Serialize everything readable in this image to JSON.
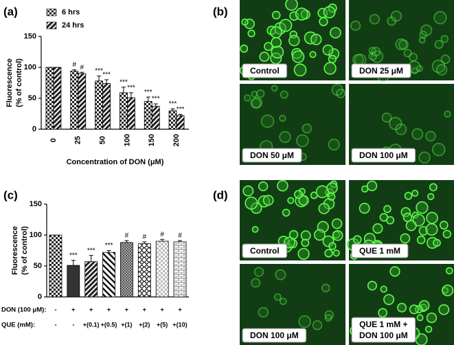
{
  "chart_data": [
    {
      "type": "grouped-bar",
      "panel_label": "(a)",
      "ylabel": [
        "Fluorescence",
        "(% of control)"
      ],
      "xlabel": "Concentration of DON (μM)",
      "categories": [
        "0",
        "25",
        "50",
        "100",
        "150",
        "200"
      ],
      "series": [
        {
          "name": "6 hrs",
          "pattern": "checker",
          "values": [
            100,
            94,
            78,
            59,
            45,
            30
          ],
          "errors": [
            0,
            2,
            8,
            9,
            7,
            3
          ],
          "markers": [
            null,
            "#",
            "***",
            "***",
            "***",
            "***"
          ]
        },
        {
          "name": "24 hrs",
          "pattern": "stripes",
          "values": [
            100,
            90,
            74,
            51,
            37,
            22
          ],
          "errors": [
            0,
            2,
            6,
            8,
            4,
            2
          ],
          "markers": [
            null,
            "#",
            "***",
            "***",
            "***",
            "***"
          ]
        }
      ],
      "ylim": [
        0,
        150
      ],
      "yticks": [
        0,
        50,
        100,
        150
      ]
    },
    {
      "type": "bar",
      "panel_label": "(c)",
      "ylabel": [
        "Fluorescence",
        "(% of control)"
      ],
      "rows": [
        {
          "label": "DON (100 μM):",
          "values": [
            "-",
            "+",
            "+",
            "+",
            "+",
            "+",
            "+",
            "+"
          ]
        },
        {
          "label": "QUE (mM):",
          "values": [
            "-",
            "-",
            "+(0.1)",
            "+(0.5)",
            "+(1)",
            "+(2)",
            "+(5)",
            "+(10)"
          ]
        }
      ],
      "values": [
        100,
        51,
        57,
        72,
        88,
        86,
        90,
        89
      ],
      "errors": [
        0,
        8,
        10,
        3,
        3,
        3,
        3,
        2
      ],
      "markers": [
        null,
        "***",
        "***",
        "***",
        "#",
        "#",
        "#",
        "#"
      ],
      "patterns": [
        "checker",
        "solid-dark",
        "stripes",
        "stripes-back",
        "crosshatch",
        "dots",
        "light-check",
        "brick"
      ],
      "ylim": [
        0,
        150
      ],
      "yticks": [
        0,
        50,
        100,
        150
      ]
    }
  ],
  "images": [
    {
      "panel_label": "(b)",
      "captions": [
        "Control",
        "DON 25 μM",
        "DON 50 μM",
        "DON 100 μM"
      ]
    },
    {
      "panel_label": "(d)",
      "captions": [
        "Control",
        "QUE 1 mM",
        "DON 100 μM",
        [
          "QUE 1 mM +",
          "DON 100 μM"
        ]
      ]
    }
  ]
}
